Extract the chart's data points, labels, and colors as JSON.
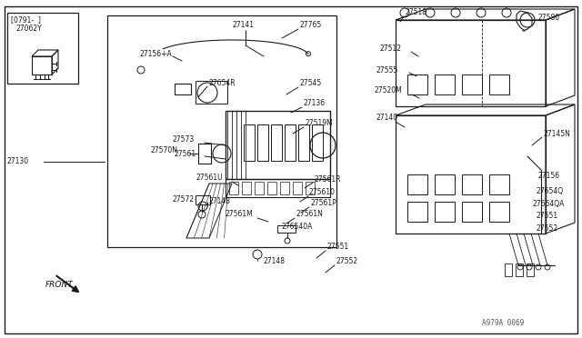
{
  "bg_color": "#ffffff",
  "line_color": "#1a1a1a",
  "text_color": "#1a1a1a",
  "watermark": "A979A 0069",
  "labels": {
    "top_left_model": "[0791-  ]",
    "top_left_part": "27062Y",
    "lbl_27141": "27141",
    "lbl_27765": "27765",
    "lbl_27156A": "27156+A",
    "lbl_27654R": "27654R",
    "lbl_27545": "27545",
    "lbl_27136": "27136",
    "lbl_27519M": "27519M",
    "lbl_27130": "27130",
    "lbl_27570N": "27570N",
    "lbl_27573": "27573",
    "lbl_27561": "27561",
    "lbl_27561U": "27561U",
    "lbl_27572": "27572",
    "lbl_27148a": "27148",
    "lbl_27561M": "27561M",
    "lbl_27561R": "27561R",
    "lbl_27561O": "275610",
    "lbl_27561P": "27561P",
    "lbl_27561N": "27561N",
    "lbl_27540A": "276540A",
    "lbl_27551a": "27551",
    "lbl_27552a": "27552",
    "lbl_27148b": "27148",
    "lbl_27518": "27518",
    "lbl_27580": "27580",
    "lbl_27512": "27512",
    "lbl_27555": "27555",
    "lbl_27520M": "27520M",
    "lbl_27140": "27140",
    "lbl_27145N": "27145N",
    "lbl_27156b": "27156",
    "lbl_27654Q": "27654Q",
    "lbl_27654QA": "27654QA",
    "lbl_27551b": "27551",
    "lbl_27552b": "27552",
    "lbl_front": "FRONT"
  }
}
